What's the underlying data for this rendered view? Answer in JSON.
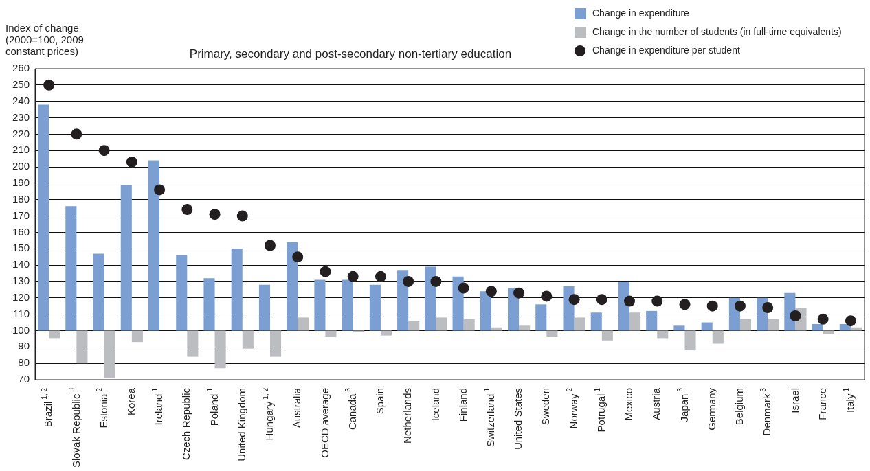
{
  "chart_data": {
    "type": "bar",
    "title": "Primary, secondary and post-secondary non-tertiary education",
    "ylabel": "Index of change (2000=100, 2009 constant prices)",
    "categories": [
      "Brazil$^{1, 2}$",
      "Slovak Republic$^{3}$",
      "Estonia$^{2}$",
      "Korea",
      "Ireland$^{1}$",
      "Czech Republic",
      "Poland$^{1}$",
      "United Kingdom",
      "Hungary$^{1, 2}$",
      "Australia",
      "OECD average",
      "Canada$^{3}$",
      "Spain",
      "Netherlands",
      "Iceland",
      "Finland",
      "Switzerland$^{1}$",
      "United States",
      "Sweden",
      "Norway$^{2}$",
      "Potrugal$^{1}$",
      "Mexico",
      "Austria",
      "Japan$^{3}$",
      "Germany",
      "Belgium",
      "Denmark$^{3}$",
      "Israel",
      "France",
      "Italy$^{1}$"
    ],
    "series": [
      {
        "name": "Change in expenditure",
        "color": "#7b9fd2",
        "base": [
          100,
          100,
          100,
          100,
          100,
          100,
          100,
          100,
          100,
          100,
          100,
          100,
          100,
          100,
          100,
          100,
          100,
          100,
          100,
          100,
          100,
          100,
          100,
          100,
          100,
          100,
          100,
          100,
          100,
          100
        ],
        "values": [
          138,
          76,
          47,
          89,
          104,
          46,
          32,
          50,
          28,
          54,
          31,
          31,
          28,
          37,
          39,
          33,
          24,
          26,
          16,
          27,
          11,
          30,
          12,
          3,
          5,
          20,
          20,
          23,
          4,
          4
        ]
      },
      {
        "name": "Change in the number of students (in full-time equivalents)",
        "color": "#bcbdc0",
        "base": [
          100,
          100,
          100,
          100,
          null,
          100,
          100,
          100,
          100,
          100,
          100,
          100,
          100,
          100,
          100,
          100,
          100,
          100,
          100,
          100,
          100,
          100,
          100,
          100,
          100,
          100,
          100,
          100,
          100,
          100
        ],
        "values": [
          -5,
          -20,
          -29,
          -7,
          null,
          -16,
          -23,
          -11,
          -16,
          8,
          -4,
          -1,
          -3,
          6,
          8,
          7,
          2,
          3,
          -4,
          8,
          -6,
          11,
          -5,
          -12,
          -8,
          7,
          7,
          14,
          -2,
          2
        ]
      },
      {
        "name": "Change in expenditure per student",
        "color": "#231f20",
        "type": "scatter",
        "marker": "circle",
        "x": [
          "Brazil$^{1, 2}$",
          "Slovak Republic$^{3}$",
          "Estonia$^{2}$",
          "Korea",
          "Ireland$^{1}$",
          "Czech Republic",
          "Poland$^{1}$",
          "United Kingdom",
          "Hungary$^{1, 2}$",
          "Australia",
          "OECD average",
          "Canada$^{3}$",
          "Spain",
          "Netherlands",
          "Iceland",
          "Finland",
          "Switzerland$^{1}$",
          "United States",
          "Sweden",
          "Norway$^{2}$",
          "Potrugal$^{1}$",
          "Mexico",
          "Austria",
          "Japan$^{3}$",
          "Germany",
          "Belgium",
          "Denmark$^{3}$",
          "Israel",
          "France",
          "Italy$^{1}$"
        ],
        "values": [
          250,
          220,
          210,
          203,
          186,
          174,
          171,
          170,
          152,
          145,
          136,
          133,
          133,
          130,
          130,
          126,
          124,
          123,
          121,
          119,
          119,
          118,
          118,
          116,
          115,
          115,
          114,
          109,
          107,
          106
        ]
      }
    ],
    "ylim": [
      70,
      260
    ],
    "yticks": [
      70,
      80,
      90,
      100,
      110,
      120,
      130,
      140,
      150,
      160,
      170,
      180,
      190,
      200,
      210,
      220,
      230,
      240,
      250,
      260
    ],
    "grid": "y",
    "legend": "top right"
  }
}
